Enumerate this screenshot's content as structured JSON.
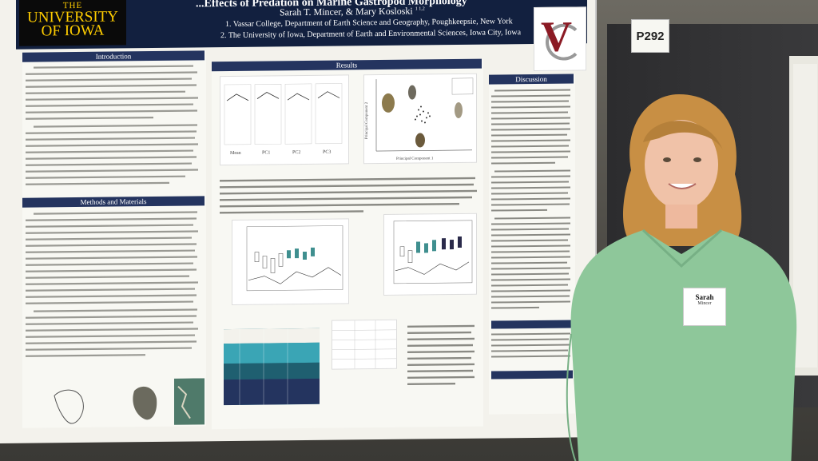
{
  "poster": {
    "logo_the": "THE",
    "logo_university": "UNIVERSITY",
    "logo_of_iowa": "OF IOWA",
    "title": "...Effects of Predation on Marine Gastropod Morphology",
    "authors": "Sarah T. Mincer, & Mary Kosloski",
    "author_superscripts": "1   1,2",
    "affiliation_1": "1. Vassar College, Department of Earth Science and Geography, Poughkeepsie, New York",
    "affiliation_2": "2. The University of Iowa, Department of Earth and Environmental Sciences, Iowa City, Iowa",
    "sections": {
      "introduction": "Introduction",
      "methods": "Methods and Materials",
      "results": "Results",
      "discussion": "Discussion"
    },
    "results_axis_x": "Principal Component 1",
    "results_axis_y": "Principal Component 2",
    "results_labels": [
      "Mean",
      "PC1",
      "PC2",
      "PC3"
    ]
  },
  "board": {
    "number": "P292"
  },
  "badge": {
    "name": "Sarah",
    "surname": "Mincer"
  },
  "colors": {
    "poster_header": "#12203f",
    "section_header": "#24345f",
    "logo_text": "#ffcd00",
    "vassar_red": "#8b1a24",
    "sweater": "#8ec79a",
    "hair": "#c88f44"
  }
}
